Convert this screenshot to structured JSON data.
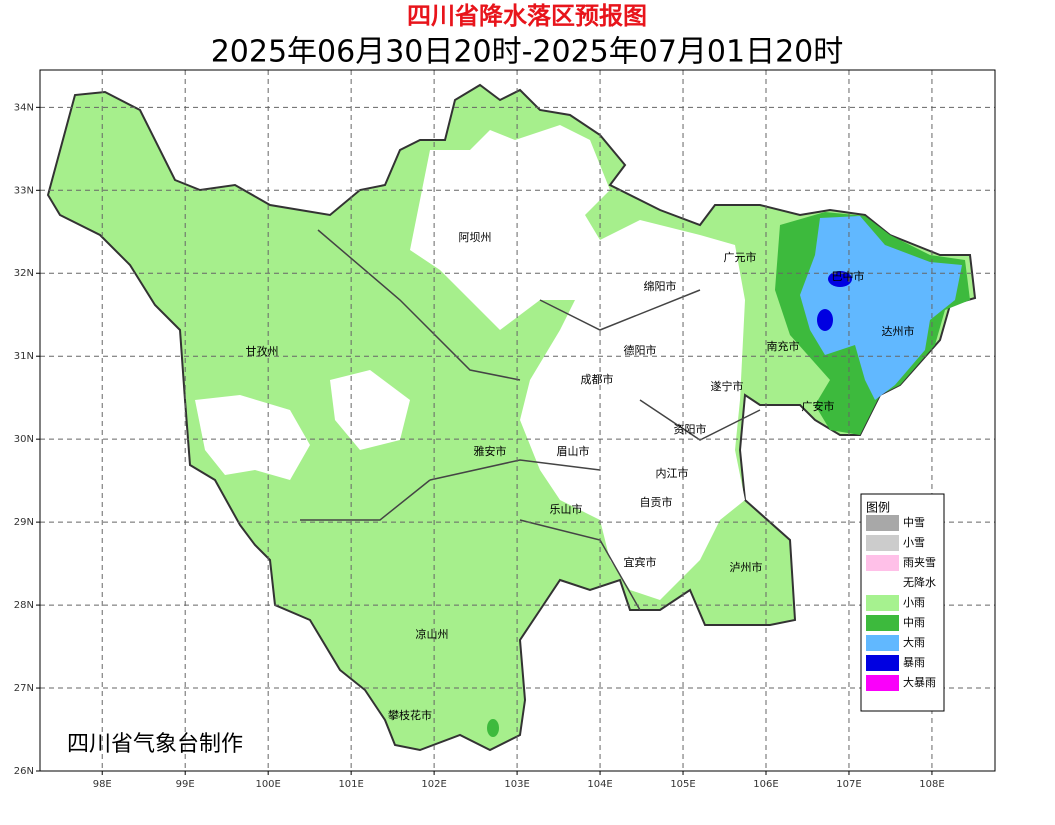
{
  "header": {
    "title": "四川省降水落区预报图",
    "subtitle": "2025年06月30日20时-2025年07月01日20时"
  },
  "map": {
    "lon_range": [
      97.25,
      108.76
    ],
    "lat_range": [
      26,
      34.45
    ],
    "lon_ticks": [
      {
        "value": 98,
        "label": "98E"
      },
      {
        "value": 99,
        "label": "99E"
      },
      {
        "value": 100,
        "label": "100E"
      },
      {
        "value": 101,
        "label": "101E"
      },
      {
        "value": 102,
        "label": "102E"
      },
      {
        "value": 103,
        "label": "103E"
      },
      {
        "value": 104,
        "label": "104E"
      },
      {
        "value": 105,
        "label": "105E"
      },
      {
        "value": 106,
        "label": "106E"
      },
      {
        "value": 107,
        "label": "107E"
      },
      {
        "value": 108,
        "label": "108E"
      }
    ],
    "lat_ticks": [
      {
        "value": 26,
        "label": "26N"
      },
      {
        "value": 27,
        "label": "27N"
      },
      {
        "value": 28,
        "label": "28N"
      },
      {
        "value": 29,
        "label": "29N"
      },
      {
        "value": 30,
        "label": "30N"
      },
      {
        "value": 31,
        "label": "31N"
      },
      {
        "value": 32,
        "label": "32N"
      },
      {
        "value": 33,
        "label": "33N"
      },
      {
        "value": 34,
        "label": "34N"
      }
    ],
    "grid": true,
    "cities": [
      "阿坝州",
      "甘孜州",
      "广元市",
      "绵阳市",
      "巴中市",
      "达州市",
      "南充市",
      "德阳市",
      "成都市",
      "遂宁市",
      "广安市",
      "资阳市",
      "雅安市",
      "眉山市",
      "内江市",
      "自贡市",
      "乐山市",
      "宜宾市",
      "泸州市",
      "凉山州",
      "攀枝花市"
    ]
  },
  "legend": {
    "title": "图例",
    "items": [
      {
        "label": "中雪",
        "color": "#a8a8a8"
      },
      {
        "label": "小雪",
        "color": "#cccccc"
      },
      {
        "label": "雨夹雪",
        "color": "#ffc0e8"
      },
      {
        "label": "无降水",
        "color": "#ffffff"
      },
      {
        "label": "小雨",
        "color": "#a6f28f"
      },
      {
        "label": "中雨",
        "color": "#3dba3d"
      },
      {
        "label": "大雨",
        "color": "#61b8ff"
      },
      {
        "label": "暴雨",
        "color": "#0000e1"
      },
      {
        "label": "大暴雨",
        "color": "#fa00fa"
      }
    ]
  },
  "credit": "四川省气象台制作"
}
